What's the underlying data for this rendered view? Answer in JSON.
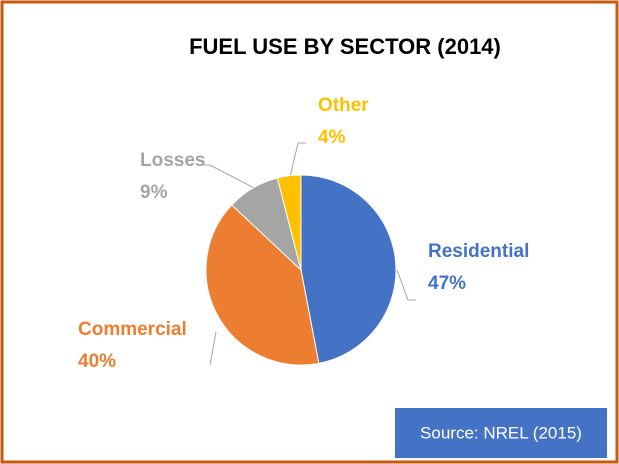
{
  "chart_data": {
    "type": "pie",
    "title": "FUEL USE BY SECTOR (2014)",
    "categories": [
      "Residential",
      "Commercial",
      "Losses",
      "Other"
    ],
    "values": [
      47,
      40,
      9,
      4
    ],
    "value_labels": [
      "47%",
      "40%",
      "9%",
      "4%"
    ],
    "colors": [
      "#4472c4",
      "#ed7d31",
      "#a5a5a5",
      "#ffc000"
    ],
    "source": "Source: NREL (2015)"
  }
}
